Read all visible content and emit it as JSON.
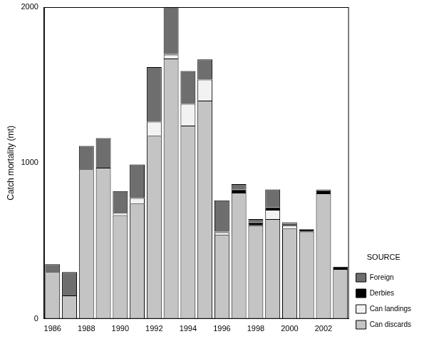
{
  "chart_data": {
    "type": "bar",
    "y_label": "Catch mortality (mt)",
    "legend_title": "SOURCE",
    "categories": [
      "1986",
      null,
      "1988",
      null,
      "1990",
      null,
      "1992",
      null,
      "1994",
      null,
      "1996",
      null,
      "1998",
      null,
      "2000",
      null,
      "2002",
      null
    ],
    "series": [
      {
        "name": "Can discards",
        "color": "#c4c4c4",
        "values": [
          300,
          150,
          960,
          970,
          665,
          740,
          1175,
          1670,
          1240,
          1400,
          540,
          810,
          600,
          640,
          580,
          560,
          805,
          320
        ]
      },
      {
        "name": "Can landings",
        "color": "#f2f2f2",
        "values": [
          0,
          0,
          0,
          0,
          15,
          35,
          90,
          25,
          140,
          135,
          15,
          0,
          0,
          60,
          20,
          0,
          0,
          0
        ]
      },
      {
        "name": "Derbies",
        "color": "#000000",
        "values": [
          0,
          0,
          0,
          0,
          0,
          0,
          0,
          5,
          0,
          0,
          5,
          20,
          20,
          15,
          10,
          15,
          20,
          15
        ]
      },
      {
        "name": "Foreign",
        "color": "#6e6e6e",
        "values": [
          50,
          150,
          150,
          190,
          140,
          215,
          350,
          300,
          210,
          130,
          200,
          35,
          20,
          115,
          10,
          0,
          5,
          0
        ]
      }
    ],
    "ylim": [
      0,
      2000
    ],
    "yticks": [
      0,
      1000,
      2000
    ],
    "stacked": true,
    "grid": false,
    "legend": "right"
  }
}
